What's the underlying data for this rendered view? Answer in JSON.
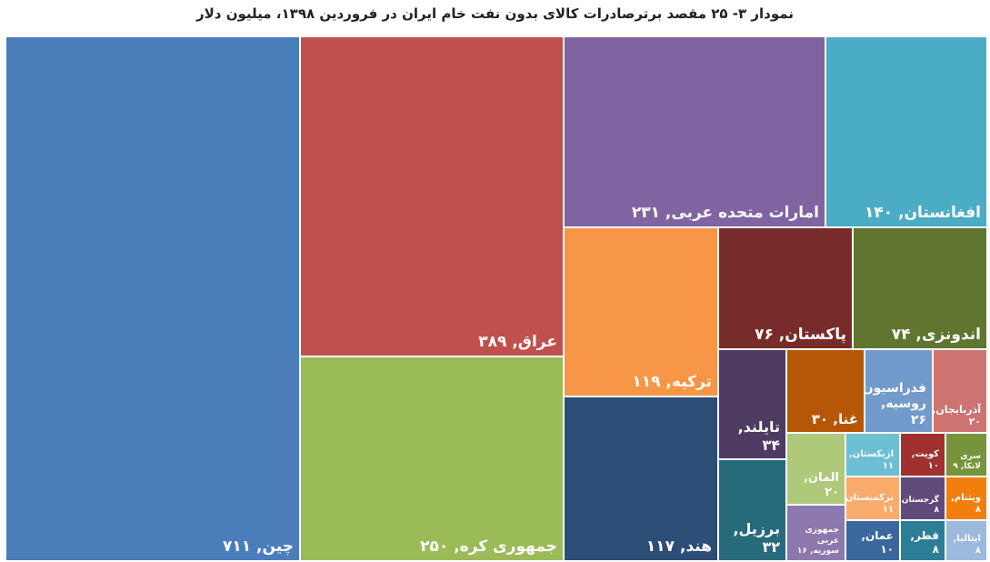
{
  "chart_data": {
    "type": "treemap",
    "title": "نمودار ۳- ۲۵ مقصد برترصادرات کالای بدون نفت خام ایران در فروردین ۱۳۹۸، میلیون دلار",
    "values": [
      711,
      389,
      250,
      231,
      140,
      119,
      117,
      76,
      74,
      34,
      32,
      30,
      26,
      20,
      20,
      16,
      11,
      11,
      10,
      10,
      8,
      8,
      9,
      8,
      8
    ],
    "value_labels": [
      "چین, ۷۱۱",
      "عراق, ۳۸۹",
      "جمهوری کره, ۲۵۰",
      "امارات متحده عربی, ۲۳۱",
      "افغانستان, ۱۴۰",
      "ترکیه, ۱۱۹",
      "هند, ۱۱۷",
      "پاکستان, ۷۶",
      "اندونزی, ۷۴",
      "تایلند, ۳۴",
      "برزیل, ۳۲",
      "غنا, ۳۰",
      "فدراسیون روسیه, ۲۶",
      "آذربایجان, ۲۰",
      "المان, ۲۰",
      "جمهوری عربی سوریه, ۱۶",
      "ازبکستان, ۱۱",
      "ترکمنستان, ۱۱",
      "عمان, ۱۰",
      "کویت, ۱۰",
      "گرجستان, ۸",
      "قطر, ۸",
      "سری لانکا, ۹",
      "ویتنام, ۸",
      "ایتالیا, ۸"
    ],
    "colors": [
      "#4a7ebb",
      "#c0504d",
      "#9bbb59",
      "#8064a2",
      "#4bacc6",
      "#f79646",
      "#2c4d75",
      "#772c2a",
      "#5f7530",
      "#4d3b62",
      "#276a7c",
      "#b65708",
      "#729aca",
      "#cd7371",
      "#afc97a",
      "#8d78ae",
      "#6ebfd4",
      "#f9ab6b",
      "#3a679c",
      "#a0312e",
      "#604a7b",
      "#2b7e95",
      "#77933c",
      "#f27f0c",
      "#9cb9de"
    ]
  }
}
